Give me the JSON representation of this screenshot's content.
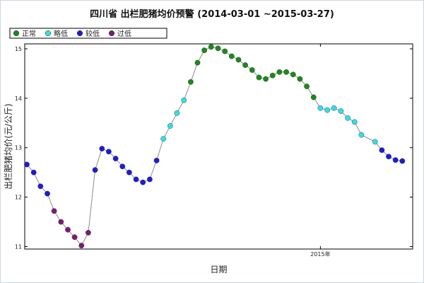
{
  "chart_data": {
    "type": "line",
    "title": "四川省 出栏肥猪均价预警 (2014-03-01 ~2015-03-27)",
    "xlabel": "日期",
    "ylabel": "出栏肥猪均价(元/公斤)",
    "ylim": [
      10.95,
      15.1
    ],
    "y_ticks": [
      11,
      12,
      13,
      14,
      15
    ],
    "x_ticks": [
      {
        "label": "2015年",
        "x": 43
      }
    ],
    "xlim": [
      0,
      56
    ],
    "grid": false,
    "legend": {
      "position": "top-left",
      "entries": [
        {
          "label": "正常",
          "color": "#1a8a1a"
        },
        {
          "label": "略低",
          "color": "#33dde6"
        },
        {
          "label": "较低",
          "color": "#1c1cd6"
        },
        {
          "label": "过低",
          "color": "#7a1a7a"
        }
      ]
    },
    "line_color": "#8c8c8c",
    "points": [
      {
        "x": 0,
        "y": 12.66,
        "level": "较低"
      },
      {
        "x": 1,
        "y": 12.5,
        "level": "较低"
      },
      {
        "x": 2,
        "y": 12.22,
        "level": "较低"
      },
      {
        "x": 3,
        "y": 12.07,
        "level": "较低"
      },
      {
        "x": 4,
        "y": 11.72,
        "level": "过低"
      },
      {
        "x": 5,
        "y": 11.5,
        "level": "过低"
      },
      {
        "x": 6,
        "y": 11.34,
        "level": "过低"
      },
      {
        "x": 7,
        "y": 11.19,
        "level": "过低"
      },
      {
        "x": 8,
        "y": 11.02,
        "level": "过低"
      },
      {
        "x": 9,
        "y": 11.28,
        "level": "过低"
      },
      {
        "x": 10,
        "y": 12.55,
        "level": "较低"
      },
      {
        "x": 11,
        "y": 12.98,
        "level": "较低"
      },
      {
        "x": 12,
        "y": 12.92,
        "level": "较低"
      },
      {
        "x": 13,
        "y": 12.78,
        "level": "较低"
      },
      {
        "x": 14,
        "y": 12.62,
        "level": "较低"
      },
      {
        "x": 15,
        "y": 12.5,
        "level": "较低"
      },
      {
        "x": 16,
        "y": 12.36,
        "level": "较低"
      },
      {
        "x": 17,
        "y": 12.3,
        "level": "较低"
      },
      {
        "x": 18,
        "y": 12.36,
        "level": "较低"
      },
      {
        "x": 19,
        "y": 12.74,
        "level": "较低"
      },
      {
        "x": 20,
        "y": 13.18,
        "level": "略低"
      },
      {
        "x": 21,
        "y": 13.44,
        "level": "略低"
      },
      {
        "x": 22,
        "y": 13.7,
        "level": "略低"
      },
      {
        "x": 23,
        "y": 13.96,
        "level": "略低"
      },
      {
        "x": 24,
        "y": 14.33,
        "level": "正常"
      },
      {
        "x": 25,
        "y": 14.72,
        "level": "正常"
      },
      {
        "x": 26,
        "y": 14.97,
        "level": "正常"
      },
      {
        "x": 27,
        "y": 15.04,
        "level": "正常"
      },
      {
        "x": 28,
        "y": 15.01,
        "level": "正常"
      },
      {
        "x": 29,
        "y": 14.95,
        "level": "正常"
      },
      {
        "x": 30,
        "y": 14.85,
        "level": "正常"
      },
      {
        "x": 31,
        "y": 14.78,
        "level": "正常"
      },
      {
        "x": 32,
        "y": 14.67,
        "level": "正常"
      },
      {
        "x": 33,
        "y": 14.57,
        "level": "正常"
      },
      {
        "x": 34,
        "y": 14.42,
        "level": "正常"
      },
      {
        "x": 35,
        "y": 14.39,
        "level": "正常"
      },
      {
        "x": 36,
        "y": 14.46,
        "level": "正常"
      },
      {
        "x": 37,
        "y": 14.53,
        "level": "正常"
      },
      {
        "x": 38,
        "y": 14.53,
        "level": "正常"
      },
      {
        "x": 39,
        "y": 14.48,
        "level": "正常"
      },
      {
        "x": 40,
        "y": 14.39,
        "level": "正常"
      },
      {
        "x": 41,
        "y": 14.24,
        "level": "正常"
      },
      {
        "x": 42,
        "y": 14.02,
        "level": "正常"
      },
      {
        "x": 43,
        "y": 13.8,
        "level": "略低"
      },
      {
        "x": 44,
        "y": 13.76,
        "level": "略低"
      },
      {
        "x": 45,
        "y": 13.8,
        "level": "略低"
      },
      {
        "x": 46,
        "y": 13.74,
        "level": "略低"
      },
      {
        "x": 47,
        "y": 13.6,
        "level": "略低"
      },
      {
        "x": 48,
        "y": 13.52,
        "level": "略低"
      },
      {
        "x": 49,
        "y": 13.26,
        "level": "略低"
      },
      {
        "x": 51,
        "y": 13.12,
        "level": "略低"
      },
      {
        "x": 52,
        "y": 12.95,
        "level": "较低"
      },
      {
        "x": 53,
        "y": 12.82,
        "level": "较低"
      },
      {
        "x": 54,
        "y": 12.75,
        "level": "较低"
      },
      {
        "x": 55,
        "y": 12.73,
        "level": "较低"
      }
    ]
  }
}
